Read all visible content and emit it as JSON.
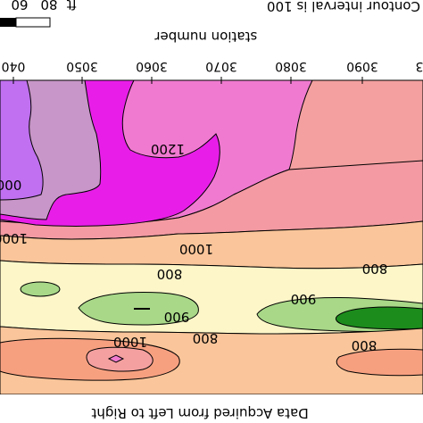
{
  "figure": {
    "scale_bar": {
      "ticks": [
        "60",
        "80"
      ],
      "unit": "ft"
    },
    "contour_interval_text": "Contour interval is 100",
    "x_axis_title": "station number",
    "station_ticks": [
      "040",
      "3050",
      "3060",
      "3070",
      "3080",
      "3090",
      "3"
    ],
    "contour_labels": [
      "1200",
      "000",
      "1000",
      "1000",
      "800",
      "800",
      "900",
      "900",
      "1000",
      "800",
      "800"
    ],
    "footer_text": "Data Acquired from Left to Right"
  },
  "colors": {
    "magenta": "#e81ee8",
    "violet": "#c070f0",
    "mauve": "#c896c8",
    "pink": "#f07ad0",
    "rose": "#f4a0a0",
    "salmon": "#f5967a",
    "peach": "#fac59a",
    "cream": "#fcf6c8",
    "light_green": "#a8d888",
    "dark_green": "#1c8c1c",
    "orange_pink": "#f7a080"
  }
}
